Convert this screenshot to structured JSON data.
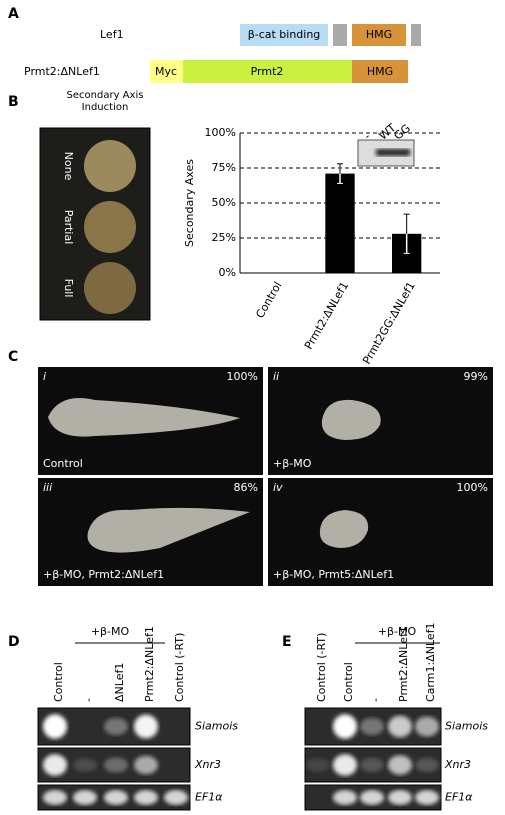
{
  "panels": {
    "a": {
      "letter": "A",
      "lef1": "Lef1",
      "bcat": "β-cat binding",
      "hmg1": "HMG",
      "construct": "Prmt2:ΔNLef1",
      "myc": "Myc",
      "prmt2": "Prmt2",
      "hmg2": "HMG"
    },
    "b": {
      "letter": "B",
      "induction": "Secondary Axis Induction",
      "none": "None",
      "partial": "Partial",
      "full": "Full",
      "gel": [
        "-",
        "WT",
        "GG"
      ]
    },
    "c": {
      "letter": "C",
      "images": [
        {
          "index": "i",
          "percent": "100%",
          "label": "Control"
        },
        {
          "index": "ii",
          "percent": "99%",
          "label": "+β-MO"
        },
        {
          "index": "iii",
          "percent": "86%",
          "label": "+β-MO, Prmt2:ΔNLef1"
        },
        {
          "index": "iv",
          "percent": "100%",
          "label": "+β-MO, Prmt5:ΔNLef1"
        }
      ]
    },
    "d": {
      "letter": "D",
      "treatment": "+β-MO",
      "lanes": [
        "Control",
        "-",
        "ΔNLef1",
        "Prmt2:ΔNLef1",
        "Control (-RT)"
      ],
      "genes": [
        "Siamois",
        "Xnr3",
        "EF1α"
      ]
    },
    "e": {
      "letter": "E",
      "treatment": "+β-MO",
      "lanes": [
        "Control (-RT)",
        "Control",
        "-",
        "Prmt2:ΔNLef1",
        "Carm1:ΔNLef1"
      ],
      "genes": [
        "Siamois",
        "Xnr3",
        "EF1α"
      ]
    }
  },
  "chart_data": {
    "type": "bar",
    "y_label": "Secondary Axes",
    "categories": [
      "Control",
      "Prmt2:ΔNLef1",
      "Prmt2GG:ΔNLef1"
    ],
    "values": [
      0,
      71,
      28
    ],
    "errors": [
      null,
      7,
      14
    ],
    "color": "#000000",
    "ylim": [
      0,
      100
    ],
    "yticks": [
      {
        "value": 0,
        "label": "0%"
      },
      {
        "value": 25,
        "label": "25%"
      },
      {
        "value": 50,
        "label": "50%"
      },
      {
        "value": 75,
        "label": "75%"
      },
      {
        "value": 100,
        "label": "100%"
      }
    ],
    "grid": true
  }
}
